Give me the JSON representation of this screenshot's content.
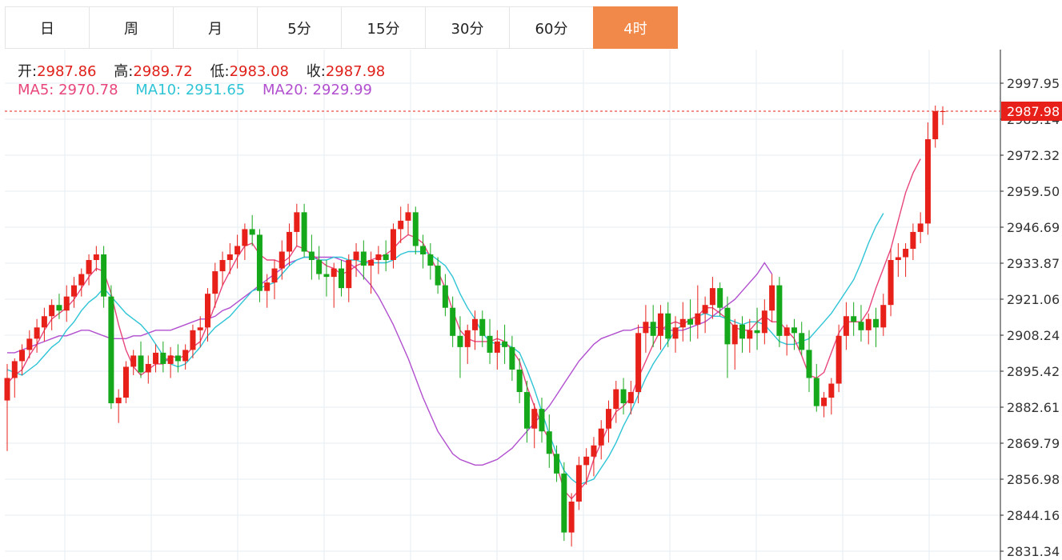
{
  "tabs": [
    {
      "label": "日"
    },
    {
      "label": "周"
    },
    {
      "label": "月"
    },
    {
      "label": "5分"
    },
    {
      "label": "15分"
    },
    {
      "label": "30分"
    },
    {
      "label": "60分"
    },
    {
      "label": "4时"
    }
  ],
  "active_tab": 7,
  "ohlc": {
    "open_label": "开:",
    "open": "2987.86",
    "high_label": "高:",
    "high": "2989.72",
    "low_label": "低:",
    "low": "2983.08",
    "close_label": "收:",
    "close": "2987.98"
  },
  "ma": {
    "ma5_label": "MA5:",
    "ma5": "2970.78",
    "ma10_label": "MA10:",
    "ma10": "2951.65",
    "ma20_label": "MA20:",
    "ma20": "2929.99"
  },
  "colors": {
    "up": "#e8201a",
    "down": "#16a81b",
    "ma5": "#e8467a",
    "ma10": "#2ec4d6",
    "ma20": "#b14fcf",
    "grid": "#e6edf3",
    "tab_active": "#f0894a"
  },
  "chart_data": {
    "type": "candlestick",
    "y_ticks": [
      "2997.95",
      "2985.14",
      "2972.32",
      "2959.50",
      "2946.69",
      "2933.87",
      "2921.06",
      "2908.24",
      "2895.42",
      "2882.61",
      "2869.79",
      "2856.98",
      "2844.16",
      "2831.34"
    ],
    "ylim": [
      2831.34,
      2997.95
    ],
    "last_price": "2987.98",
    "ohlc": [
      [
        2885,
        2898,
        2867,
        2893
      ],
      [
        2893,
        2900,
        2886,
        2899
      ],
      [
        2899,
        2905,
        2894,
        2903
      ],
      [
        2903,
        2910,
        2900,
        2907
      ],
      [
        2907,
        2914,
        2902,
        2911
      ],
      [
        2911,
        2918,
        2906,
        2915
      ],
      [
        2915,
        2921,
        2910,
        2919
      ],
      [
        2919,
        2923,
        2914,
        2917
      ],
      [
        2917,
        2926,
        2913,
        2922
      ],
      [
        2922,
        2929,
        2918,
        2926
      ],
      [
        2926,
        2932,
        2922,
        2930
      ],
      [
        2930,
        2937,
        2926,
        2935
      ],
      [
        2935,
        2940,
        2931,
        2937
      ],
      [
        2937,
        2940,
        2918,
        2922
      ],
      [
        2922,
        2926,
        2882,
        2884
      ],
      [
        2884,
        2889,
        2877,
        2886
      ],
      [
        2886,
        2899,
        2884,
        2897
      ],
      [
        2897,
        2903,
        2894,
        2901
      ],
      [
        2901,
        2906,
        2893,
        2895
      ],
      [
        2895,
        2901,
        2891,
        2898
      ],
      [
        2898,
        2905,
        2895,
        2902
      ],
      [
        2902,
        2906,
        2895,
        2898
      ],
      [
        2898,
        2904,
        2893,
        2901
      ],
      [
        2901,
        2905,
        2895,
        2899
      ],
      [
        2899,
        2905,
        2896,
        2903
      ],
      [
        2903,
        2912,
        2900,
        2910
      ],
      [
        2910,
        2915,
        2904,
        2911
      ],
      [
        2911,
        2925,
        2906,
        2923
      ],
      [
        2923,
        2934,
        2918,
        2931
      ],
      [
        2931,
        2938,
        2926,
        2935
      ],
      [
        2935,
        2941,
        2930,
        2937
      ],
      [
        2937,
        2944,
        2932,
        2940
      ],
      [
        2940,
        2948,
        2935,
        2946
      ],
      [
        2946,
        2951,
        2940,
        2944
      ],
      [
        2944,
        2946,
        2920,
        2924
      ],
      [
        2924,
        2930,
        2918,
        2927
      ],
      [
        2927,
        2935,
        2921,
        2932
      ],
      [
        2932,
        2942,
        2928,
        2938
      ],
      [
        2938,
        2948,
        2933,
        2945
      ],
      [
        2945,
        2955,
        2940,
        2952
      ],
      [
        2952,
        2955,
        2936,
        2938
      ],
      [
        2938,
        2944,
        2928,
        2935
      ],
      [
        2935,
        2940,
        2928,
        2930
      ],
      [
        2930,
        2935,
        2922,
        2929
      ],
      [
        2929,
        2934,
        2918,
        2932
      ],
      [
        2932,
        2935,
        2922,
        2925
      ],
      [
        2925,
        2937,
        2920,
        2935
      ],
      [
        2935,
        2941,
        2929,
        2938
      ],
      [
        2938,
        2942,
        2928,
        2933
      ],
      [
        2933,
        2938,
        2923,
        2935
      ],
      [
        2935,
        2940,
        2930,
        2937
      ],
      [
        2937,
        2942,
        2931,
        2935
      ],
      [
        2935,
        2948,
        2932,
        2946
      ],
      [
        2946,
        2954,
        2941,
        2949
      ],
      [
        2949,
        2955,
        2944,
        2952
      ],
      [
        2952,
        2954,
        2937,
        2940
      ],
      [
        2940,
        2944,
        2932,
        2937
      ],
      [
        2937,
        2941,
        2928,
        2933
      ],
      [
        2933,
        2936,
        2923,
        2926
      ],
      [
        2926,
        2930,
        2915,
        2918
      ],
      [
        2918,
        2922,
        2904,
        2908
      ],
      [
        2908,
        2915,
        2893,
        2904
      ],
      [
        2904,
        2912,
        2898,
        2910
      ],
      [
        2910,
        2917,
        2903,
        2914
      ],
      [
        2914,
        2917,
        2904,
        2908
      ],
      [
        2908,
        2914,
        2898,
        2902
      ],
      [
        2902,
        2910,
        2896,
        2906
      ],
      [
        2906,
        2912,
        2898,
        2904
      ],
      [
        2904,
        2908,
        2892,
        2896
      ],
      [
        2896,
        2900,
        2884,
        2888
      ],
      [
        2888,
        2892,
        2870,
        2875
      ],
      [
        2875,
        2884,
        2868,
        2882
      ],
      [
        2882,
        2886,
        2870,
        2874
      ],
      [
        2874,
        2880,
        2861,
        2866
      ],
      [
        2866,
        2869,
        2856,
        2859
      ],
      [
        2859,
        2863,
        2835,
        2838
      ],
      [
        2838,
        2852,
        2833,
        2849
      ],
      [
        2849,
        2865,
        2846,
        2862
      ],
      [
        2862,
        2868,
        2855,
        2865
      ],
      [
        2865,
        2872,
        2858,
        2869
      ],
      [
        2869,
        2878,
        2864,
        2875
      ],
      [
        2875,
        2885,
        2870,
        2882
      ],
      [
        2882,
        2892,
        2877,
        2889
      ],
      [
        2889,
        2893,
        2880,
        2884
      ],
      [
        2884,
        2892,
        2880,
        2888
      ],
      [
        2888,
        2912,
        2884,
        2909
      ],
      [
        2909,
        2919,
        2902,
        2913
      ],
      [
        2913,
        2919,
        2904,
        2908
      ],
      [
        2908,
        2919,
        2903,
        2916
      ],
      [
        2916,
        2920,
        2904,
        2907
      ],
      [
        2907,
        2915,
        2902,
        2911
      ],
      [
        2911,
        2920,
        2906,
        2914
      ],
      [
        2914,
        2921,
        2906,
        2912
      ],
      [
        2912,
        2926,
        2907,
        2916
      ],
      [
        2916,
        2922,
        2909,
        2919
      ],
      [
        2919,
        2929,
        2914,
        2925
      ],
      [
        2925,
        2927,
        2915,
        2918
      ],
      [
        2918,
        2922,
        2893,
        2905
      ],
      [
        2905,
        2914,
        2896,
        2912
      ],
      [
        2912,
        2915,
        2902,
        2907
      ],
      [
        2907,
        2914,
        2902,
        2910
      ],
      [
        2910,
        2918,
        2903,
        2909
      ],
      [
        2909,
        2921,
        2905,
        2917
      ],
      [
        2917,
        2930,
        2913,
        2926
      ],
      [
        2926,
        2929,
        2904,
        2908
      ],
      [
        2908,
        2912,
        2901,
        2911
      ],
      [
        2911,
        2914,
        2903,
        2909
      ],
      [
        2909,
        2913,
        2901,
        2903
      ],
      [
        2903,
        2910,
        2888,
        2893
      ],
      [
        2893,
        2898,
        2881,
        2883
      ],
      [
        2883,
        2888,
        2879,
        2886
      ],
      [
        2886,
        2893,
        2880,
        2891
      ],
      [
        2891,
        2912,
        2888,
        2908
      ],
      [
        2908,
        2920,
        2903,
        2915
      ],
      [
        2915,
        2920,
        2908,
        2913
      ],
      [
        2913,
        2919,
        2906,
        2910
      ],
      [
        2910,
        2916,
        2905,
        2914
      ],
      [
        2914,
        2918,
        2904,
        2911
      ],
      [
        2911,
        2923,
        2908,
        2919
      ],
      [
        2919,
        2939,
        2915,
        2935
      ],
      [
        2935,
        2941,
        2929,
        2936
      ],
      [
        2936,
        2941,
        2929,
        2939
      ],
      [
        2939,
        2948,
        2935,
        2945
      ],
      [
        2945,
        2952,
        2941,
        2948
      ],
      [
        2948,
        2984,
        2944,
        2978
      ],
      [
        2978,
        2990,
        2975,
        2988
      ],
      [
        2987.86,
        2989.72,
        2983.08,
        2987.98
      ]
    ],
    "ma5": [
      2891,
      2894,
      2896,
      2901,
      2905,
      2910,
      2914,
      2916,
      2918,
      2921,
      2925,
      2929,
      2932,
      2931,
      2923,
      2912,
      2903,
      2897,
      2894,
      2896,
      2898,
      2898,
      2901,
      2900,
      2901,
      2904,
      2906,
      2912,
      2919,
      2926,
      2931,
      2936,
      2940,
      2941,
      2937,
      2935,
      2935,
      2934,
      2936,
      2940,
      2939,
      2937,
      2935,
      2933,
      2932,
      2930,
      2931,
      2933,
      2934,
      2935,
      2936,
      2937,
      2939,
      2942,
      2944,
      2943,
      2941,
      2936,
      2931,
      2925,
      2917,
      2910,
      2907,
      2906,
      2906,
      2906,
      2907,
      2906,
      2903,
      2899,
      2890,
      2883,
      2876,
      2871,
      2862,
      2853,
      2850,
      2853,
      2856,
      2864,
      2870,
      2876,
      2881,
      2883,
      2886,
      2893,
      2899,
      2905,
      2910,
      2912,
      2913,
      2912,
      2914,
      2915,
      2918,
      2918,
      2916,
      2914,
      2911,
      2910,
      2910,
      2913,
      2915,
      2913,
      2913,
      2910,
      2907,
      2901,
      2894,
      2893,
      2895,
      2902,
      2909,
      2913,
      2913,
      2913,
      2917,
      2925,
      2932,
      2939,
      2949,
      2959,
      2966,
      2971
    ],
    "ma10": [
      2896,
      2895,
      2894,
      2896,
      2898,
      2901,
      2904,
      2906,
      2910,
      2913,
      2917,
      2920,
      2922,
      2925,
      2922,
      2919,
      2916,
      2914,
      2912,
      2909,
      2905,
      2901,
      2898,
      2897,
      2898,
      2901,
      2904,
      2908,
      2911,
      2913,
      2915,
      2918,
      2921,
      2924,
      2925,
      2926,
      2927,
      2930,
      2933,
      2935,
      2936,
      2936,
      2935,
      2935,
      2936,
      2936,
      2935,
      2935,
      2934,
      2934,
      2934,
      2934,
      2935,
      2937,
      2938,
      2938,
      2938,
      2937,
      2935,
      2933,
      2929,
      2923,
      2918,
      2914,
      2909,
      2906,
      2905,
      2905,
      2904,
      2902,
      2896,
      2889,
      2881,
      2873,
      2866,
      2860,
      2857,
      2855,
      2856,
      2857,
      2861,
      2865,
      2870,
      2876,
      2881,
      2887,
      2893,
      2898,
      2902,
      2906,
      2910,
      2912,
      2914,
      2915,
      2916,
      2915,
      2915,
      2914,
      2913,
      2912,
      2913,
      2913,
      2912,
      2909,
      2906,
      2905,
      2905,
      2906,
      2907,
      2910,
      2913,
      2916,
      2920,
      2924,
      2928,
      2934,
      2941,
      2947,
      2951.65
    ],
    "ma20": [
      2902,
      2902,
      2903,
      2904,
      2905,
      2906,
      2907,
      2908,
      2908,
      2909,
      2910,
      2910,
      2909,
      2908,
      2907,
      2907,
      2907,
      2908,
      2908,
      2909,
      2910,
      2910,
      2910,
      2911,
      2912,
      2913,
      2914,
      2914,
      2915,
      2917,
      2918,
      2920,
      2922,
      2924,
      2926,
      2928,
      2930,
      2932,
      2934,
      2935,
      2936,
      2936,
      2936,
      2936,
      2936,
      2935,
      2934,
      2932,
      2929,
      2926,
      2922,
      2917,
      2912,
      2906,
      2900,
      2893,
      2886,
      2880,
      2874,
      2870,
      2866,
      2864,
      2863,
      2862,
      2862,
      2863,
      2864,
      2866,
      2868,
      2871,
      2874,
      2877,
      2880,
      2883,
      2887,
      2891,
      2895,
      2899,
      2902,
      2905,
      2907,
      2908,
      2909,
      2910,
      2910,
      2911,
      2911,
      2911,
      2911,
      2910,
      2910,
      2910,
      2911,
      2912,
      2913,
      2915,
      2917,
      2919,
      2921,
      2924,
      2927,
      2930,
      2934,
      2929.99
    ]
  }
}
